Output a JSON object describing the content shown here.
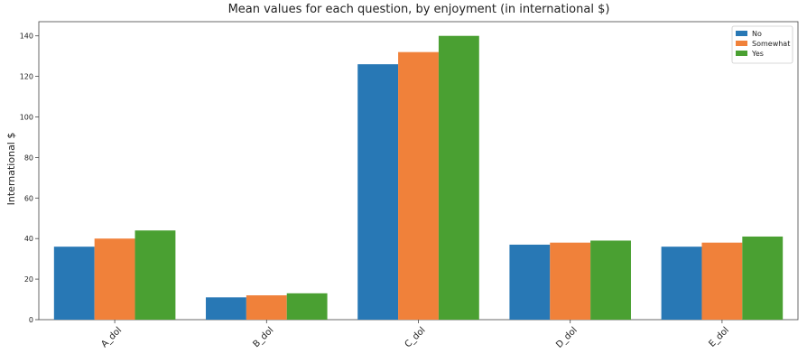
{
  "chart_data": {
    "type": "bar",
    "title": "Mean values for each question, by enjoyment (in international $)",
    "xlabel": "",
    "ylabel": "International $",
    "categories": [
      "A_dol",
      "B_dol",
      "C_dol",
      "D_dol",
      "E_dol"
    ],
    "series": [
      {
        "name": "No",
        "color": "#2878b5",
        "values": [
          36,
          11,
          126,
          37,
          36
        ]
      },
      {
        "name": "Somewhat",
        "color": "#f0813a",
        "values": [
          40,
          12,
          132,
          38,
          38
        ]
      },
      {
        "name": "Yes",
        "color": "#4aa032",
        "values": [
          44,
          13,
          140,
          39,
          41
        ]
      }
    ],
    "ylim": [
      0,
      147
    ],
    "yticks": [
      0,
      20,
      40,
      60,
      80,
      100,
      120,
      140
    ],
    "grid": false,
    "legend_position": "top-right"
  }
}
